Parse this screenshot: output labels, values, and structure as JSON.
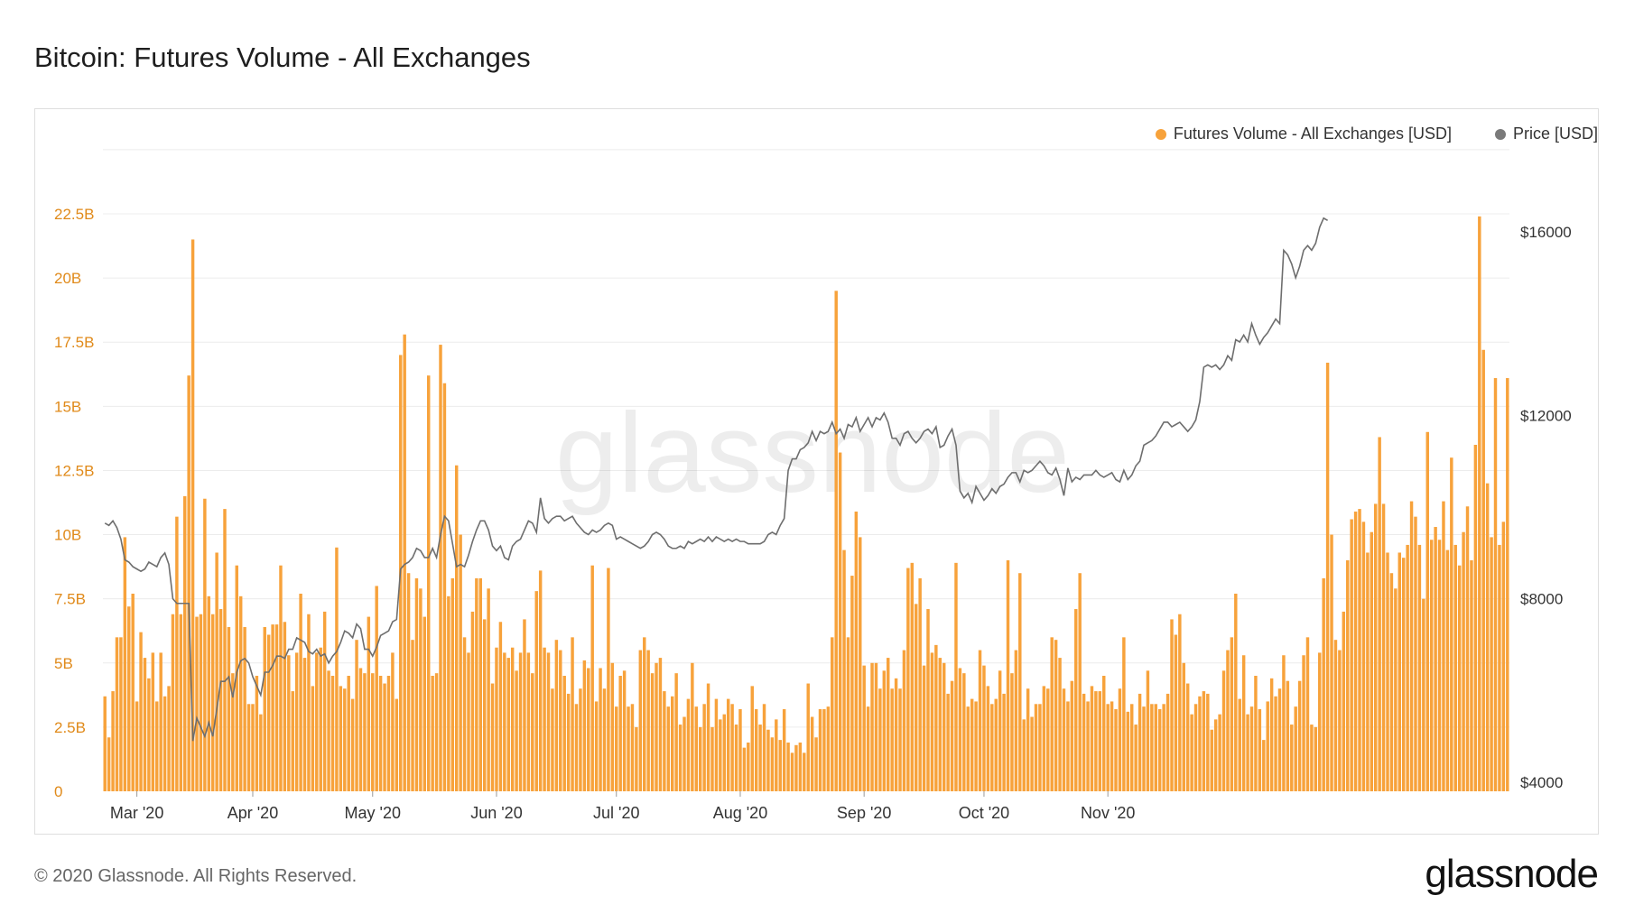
{
  "title": "Bitcoin: Futures Volume - All Exchanges",
  "footer": "© 2020 Glassnode. All Rights Reserved.",
  "brand": "glassnode",
  "watermark": "glassnode",
  "legend": [
    {
      "label": "Futures Volume - All Exchanges [USD]",
      "color": "#f7a23b"
    },
    {
      "label": "Price [USD]",
      "color": "#7a7a7a"
    }
  ],
  "chart_data": {
    "type": "bar",
    "legend_position": "top-right",
    "grid": true,
    "left_axis": {
      "ticks": [
        "0",
        "2.5B",
        "5B",
        "7.5B",
        "10B",
        "12.5B",
        "15B",
        "17.5B",
        "20B",
        "22.5B"
      ],
      "tick_values": [
        0,
        2.5,
        5,
        7.5,
        10,
        12.5,
        15,
        17.5,
        20,
        22.5
      ],
      "range": [
        0,
        22.5
      ],
      "color": "#e08a1a"
    },
    "right_axis": {
      "ticks": [
        "$4000",
        "$8000",
        "$12000",
        "$16000"
      ],
      "tick_values": [
        4000,
        8000,
        12000,
        16000
      ],
      "range": [
        4000,
        16000
      ]
    },
    "x_ticks": [
      {
        "label": "Mar '20",
        "index": 8
      },
      {
        "label": "Apr '20",
        "index": 37
      },
      {
        "label": "May '20",
        "index": 67
      },
      {
        "label": "Jun '20",
        "index": 98
      },
      {
        "label": "Jul '20",
        "index": 128
      },
      {
        "label": "Aug '20",
        "index": 159
      },
      {
        "label": "Sep '20",
        "index": 190
      },
      {
        "label": "Oct '20",
        "index": 220
      },
      {
        "label": "Nov '20",
        "index": 251
      }
    ],
    "series": [
      {
        "name": "Futures Volume - All Exchanges [USD]",
        "unit": "B USD",
        "color": "#f7a23b",
        "values": [
          3.7,
          2.1,
          3.9,
          6.0,
          6.0,
          9.9,
          7.2,
          7.7,
          3.5,
          6.2,
          5.2,
          4.4,
          5.4,
          3.5,
          5.4,
          3.7,
          4.1,
          6.9,
          10.7,
          6.9,
          11.5,
          16.2,
          21.5,
          6.8,
          6.9,
          11.4,
          7.6,
          6.9,
          9.3,
          7.1,
          11.0,
          6.4,
          4.6,
          8.8,
          7.6,
          6.4,
          3.4,
          3.4,
          4.5,
          3.0,
          6.4,
          6.1,
          6.5,
          6.5,
          8.8,
          6.6,
          5.3,
          3.9,
          5.4,
          7.7,
          5.2,
          6.9,
          4.1,
          5.4,
          5.6,
          7.0,
          4.7,
          4.5,
          9.5,
          4.1,
          4.0,
          4.5,
          3.6,
          5.9,
          4.8,
          4.6,
          6.8,
          4.6,
          8.0,
          4.5,
          4.2,
          4.5,
          5.4,
          3.6,
          17.0,
          17.8,
          8.5,
          5.9,
          8.3,
          7.9,
          6.8,
          16.2,
          4.5,
          4.6,
          17.4,
          15.9,
          7.6,
          8.3,
          12.7,
          10.0,
          6.0,
          5.4,
          7.0,
          8.3,
          8.3,
          6.7,
          7.9,
          4.2,
          5.6,
          6.6,
          5.4,
          5.2,
          5.6,
          4.7,
          5.4,
          6.7,
          5.4,
          4.6,
          7.8,
          8.6,
          5.6,
          5.4,
          4.0,
          5.9,
          5.5,
          4.5,
          3.8,
          6.0,
          3.4,
          4.0,
          5.1,
          4.8,
          8.8,
          3.5,
          4.8,
          4.0,
          8.7,
          5.0,
          3.3,
          4.5,
          4.7,
          3.3,
          3.4,
          2.5,
          5.5,
          6.0,
          5.5,
          4.6,
          5.0,
          5.2,
          3.9,
          3.3,
          3.7,
          4.6,
          2.6,
          2.9,
          3.6,
          5.0,
          3.3,
          2.5,
          3.4,
          4.2,
          2.5,
          3.6,
          2.8,
          3.0,
          3.6,
          3.4,
          2.6,
          3.2,
          1.7,
          1.9,
          4.1,
          3.2,
          2.6,
          3.4,
          2.4,
          2.1,
          2.8,
          2.0,
          3.2,
          1.9,
          1.5,
          1.8,
          1.9,
          1.5,
          4.2,
          2.9,
          2.1,
          3.2,
          3.2,
          3.3,
          6.0,
          19.5,
          13.2,
          9.4,
          6.0,
          8.4,
          10.9,
          9.9,
          4.9,
          3.3,
          5.0,
          5.0,
          4.0,
          4.7,
          5.2,
          4.0,
          4.4,
          4.0,
          5.5,
          8.7,
          8.9,
          7.3,
          8.3,
          4.9,
          7.1,
          5.4,
          5.7,
          5.2,
          5.0,
          3.8,
          4.3,
          8.9,
          4.8,
          4.6,
          3.3,
          3.6,
          3.5,
          5.5,
          4.9,
          4.1,
          3.4,
          3.6,
          4.7,
          3.8,
          9.0,
          4.6,
          5.5,
          8.5,
          2.8,
          4.0,
          2.9,
          3.4,
          3.4,
          4.1,
          4.0,
          6.0,
          5.9,
          5.2,
          4.0,
          3.5,
          4.3,
          7.1,
          8.5,
          3.8,
          3.5,
          4.1,
          3.9,
          3.9,
          4.5,
          3.4,
          3.5,
          3.2,
          4.0,
          6.0,
          3.1,
          3.4,
          2.6,
          3.8,
          3.3,
          4.7,
          3.4,
          3.4,
          3.2,
          3.4,
          3.8,
          6.7,
          6.1,
          6.9,
          5.0,
          4.2,
          3.0,
          3.4,
          3.7,
          3.9,
          3.8,
          2.4,
          2.8,
          3.0,
          4.7,
          5.5,
          6.0,
          7.7,
          3.6,
          5.3,
          3.0,
          3.3,
          4.5,
          3.2,
          2.0,
          3.5,
          4.4,
          3.7,
          4.0,
          5.3,
          4.3,
          2.6,
          3.3,
          4.3,
          5.3,
          6.0,
          2.6,
          2.5,
          5.4,
          8.3,
          16.7,
          10.0,
          5.9,
          5.5,
          7.0,
          9.0,
          10.6,
          10.9,
          11.0,
          10.5,
          9.3,
          10.1,
          11.2,
          13.8,
          11.2,
          9.3,
          8.5,
          7.9,
          9.3,
          9.1,
          9.6,
          11.3,
          10.7,
          9.6,
          7.5,
          14.0,
          9.8,
          10.3,
          9.8,
          11.3,
          9.4,
          13.0,
          9.6,
          8.8,
          10.1,
          11.1,
          9.0,
          13.5,
          22.4,
          17.2,
          12.0,
          9.9,
          16.1,
          9.6,
          10.5,
          16.1
        ]
      },
      {
        "name": "Price [USD]",
        "unit": "USD",
        "color": "#6e6e6e",
        "values": [
          9650,
          9600,
          9700,
          9550,
          9300,
          8850,
          8800,
          8700,
          8650,
          8600,
          8650,
          8800,
          8750,
          8700,
          8900,
          9000,
          8750,
          8000,
          7900,
          7900,
          7900,
          7900,
          4900,
          5400,
          5200,
          5000,
          5300,
          5000,
          5600,
          6200,
          6200,
          6300,
          5850,
          6400,
          6650,
          6700,
          6600,
          6300,
          6100,
          5900,
          6400,
          6400,
          6550,
          6750,
          6750,
          6700,
          6900,
          6900,
          7150,
          7100,
          7050,
          6850,
          6800,
          6900,
          6750,
          6800,
          6600,
          6750,
          6850,
          7050,
          7300,
          7250,
          7150,
          7450,
          7350,
          6900,
          6900,
          6750,
          6950,
          7200,
          7250,
          7300,
          7500,
          7550,
          8650,
          8750,
          8800,
          8900,
          9100,
          9050,
          8900,
          8900,
          9100,
          8900,
          9400,
          9800,
          9700,
          9200,
          8700,
          8750,
          8700,
          8950,
          9250,
          9500,
          9700,
          9700,
          9500,
          9150,
          9050,
          9150,
          8900,
          8850,
          9150,
          9250,
          9300,
          9500,
          9700,
          9650,
          9450,
          10200,
          9750,
          9650,
          9750,
          9800,
          9800,
          9700,
          9750,
          9800,
          9650,
          9550,
          9450,
          9400,
          9500,
          9450,
          9500,
          9600,
          9650,
          9600,
          9300,
          9350,
          9300,
          9250,
          9200,
          9150,
          9100,
          9150,
          9250,
          9400,
          9450,
          9400,
          9300,
          9150,
          9100,
          9100,
          9150,
          9100,
          9250,
          9200,
          9250,
          9300,
          9250,
          9350,
          9250,
          9350,
          9300,
          9250,
          9300,
          9250,
          9300,
          9250,
          9250,
          9200,
          9200,
          9200,
          9200,
          9250,
          9400,
          9450,
          9400,
          9600,
          9750,
          10800,
          11050,
          11050,
          11250,
          11300,
          11400,
          11650,
          11450,
          11650,
          11600,
          11650,
          11850,
          11600,
          11700,
          11500,
          11800,
          11750,
          11950,
          11650,
          11800,
          11950,
          11750,
          11950,
          11900,
          12050,
          11850,
          11500,
          11500,
          11350,
          11600,
          11650,
          11500,
          11400,
          11500,
          11650,
          11700,
          11600,
          11750,
          11300,
          11350,
          11550,
          11700,
          11350,
          10350,
          10200,
          10300,
          10100,
          10450,
          10300,
          10150,
          10250,
          10400,
          10300,
          10450,
          10500,
          10650,
          10750,
          10750,
          10550,
          10800,
          10750,
          10800,
          10900,
          11000,
          10900,
          10750,
          10700,
          10850,
          10600,
          10250,
          10850,
          10550,
          10650,
          10600,
          10700,
          10700,
          10700,
          10800,
          10700,
          10650,
          10700,
          10750,
          10600,
          10550,
          10800,
          10600,
          10700,
          10900,
          11000,
          11350,
          11400,
          11450,
          11550,
          11700,
          11850,
          11850,
          11750,
          11800,
          11850,
          11750,
          11650,
          11750,
          11900,
          12300,
          13050,
          13100,
          13050,
          13100,
          13000,
          13100,
          13300,
          13200,
          13650,
          13600,
          13750,
          13600,
          14000,
          13750,
          13550,
          13700,
          13800,
          13950,
          14100,
          14000,
          15600,
          15500,
          15300,
          15000,
          15250,
          15600,
          15700,
          15600,
          15750,
          16100,
          16300,
          16250
        ]
      }
    ]
  }
}
